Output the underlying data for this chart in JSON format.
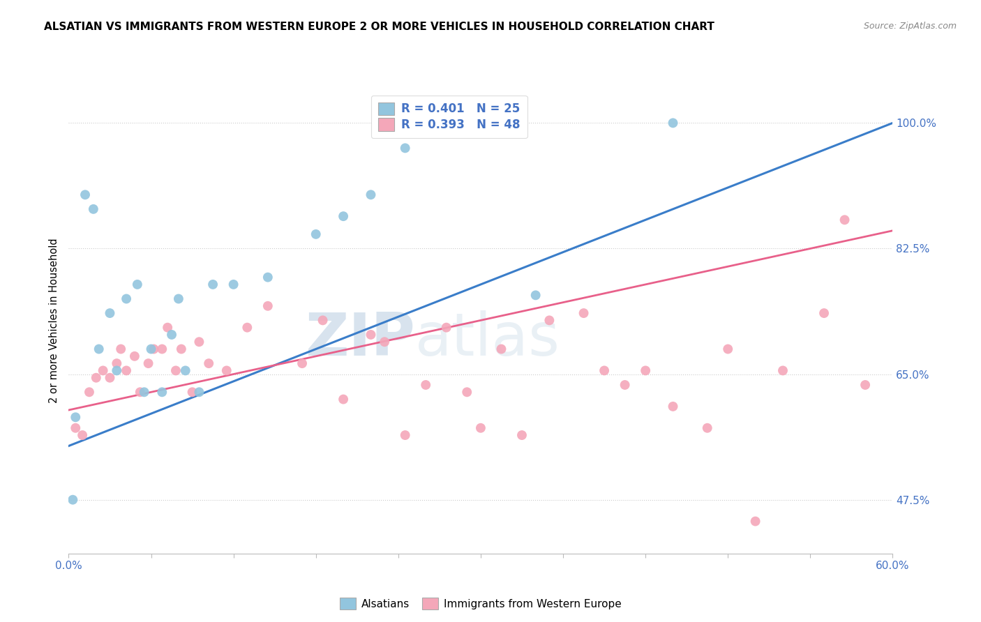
{
  "title": "ALSATIAN VS IMMIGRANTS FROM WESTERN EUROPE 2 OR MORE VEHICLES IN HOUSEHOLD CORRELATION CHART",
  "source": "Source: ZipAtlas.com",
  "legend_label1": "R = 0.401   N = 25",
  "legend_label2": "R = 0.393   N = 48",
  "legend_entry1": "Alsatians",
  "legend_entry2": "Immigrants from Western Europe",
  "ylabel_label": "2 or more Vehicles in Household",
  "color_blue": "#92c5de",
  "color_pink": "#f4a7b9",
  "color_blue_line": "#3a7dc9",
  "color_pink_line": "#e8608a",
  "watermark_zip": "ZIP",
  "watermark_atlas": "atlas",
  "blue_x": [
    0.3,
    0.5,
    1.2,
    1.8,
    2.2,
    3.0,
    3.5,
    4.2,
    5.0,
    5.5,
    6.0,
    6.8,
    7.5,
    8.0,
    8.5,
    9.5,
    10.5,
    12.0,
    14.5,
    18.0,
    20.0,
    22.0,
    24.5,
    34.0,
    44.0
  ],
  "blue_y": [
    47.5,
    59.0,
    90.0,
    88.0,
    68.5,
    73.5,
    65.5,
    75.5,
    77.5,
    62.5,
    68.5,
    62.5,
    70.5,
    75.5,
    65.5,
    62.5,
    77.5,
    77.5,
    78.5,
    84.5,
    87.0,
    90.0,
    96.5,
    76.0,
    100.0
  ],
  "pink_x": [
    0.5,
    1.0,
    1.5,
    2.0,
    2.5,
    3.0,
    3.5,
    3.8,
    4.2,
    4.8,
    5.2,
    5.8,
    6.2,
    6.8,
    7.2,
    7.8,
    8.2,
    9.0,
    9.5,
    10.2,
    11.5,
    13.0,
    14.5,
    17.0,
    18.5,
    20.0,
    22.0,
    23.0,
    24.5,
    26.0,
    27.5,
    29.0,
    30.0,
    31.5,
    33.0,
    35.0,
    37.5,
    39.0,
    40.5,
    42.0,
    44.0,
    46.5,
    48.0,
    50.0,
    52.0,
    55.0,
    56.5,
    58.0
  ],
  "pink_y": [
    57.5,
    56.5,
    62.5,
    64.5,
    65.5,
    64.5,
    66.5,
    68.5,
    65.5,
    67.5,
    62.5,
    66.5,
    68.5,
    68.5,
    71.5,
    65.5,
    68.5,
    62.5,
    69.5,
    66.5,
    65.5,
    71.5,
    74.5,
    66.5,
    72.5,
    61.5,
    70.5,
    69.5,
    56.5,
    63.5,
    71.5,
    62.5,
    57.5,
    68.5,
    56.5,
    72.5,
    73.5,
    65.5,
    63.5,
    65.5,
    60.5,
    57.5,
    68.5,
    44.5,
    65.5,
    73.5,
    86.5,
    63.5
  ],
  "xmin": 0.0,
  "xmax": 60.0,
  "ymin": 40.0,
  "ymax": 105.0,
  "yticks": [
    47.5,
    65.0,
    82.5,
    100.0
  ],
  "blue_line_x": [
    0.0,
    60.0
  ],
  "blue_line_y": [
    55.0,
    100.0
  ],
  "pink_line_x": [
    0.0,
    60.0
  ],
  "pink_line_y": [
    60.0,
    85.0
  ]
}
